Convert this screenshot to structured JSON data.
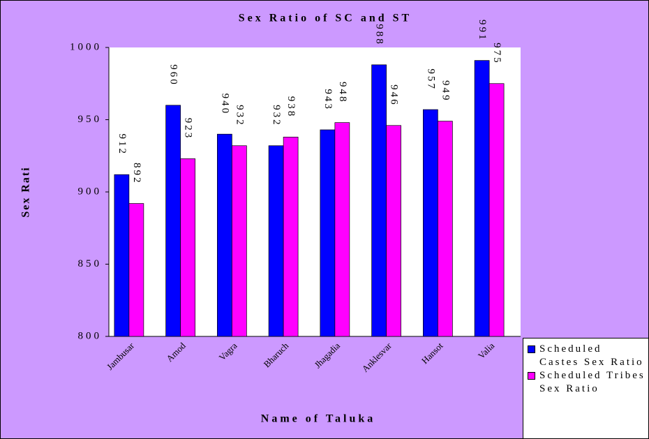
{
  "chart_data": {
    "type": "bar",
    "title": "Sex Ratio of SC and ST",
    "x_label": "Name of Taluka",
    "y_label": "Sex Rati",
    "categories": [
      "Jambusar",
      "Amod",
      "Vagra",
      "Bharuch",
      "Jhagadia",
      "Anklesvar",
      "Hansot",
      "Valia"
    ],
    "series": [
      {
        "name": "Scheduled Castes Sex Ratio",
        "color": "#0000ff",
        "values": [
          912,
          960,
          940,
          932,
          943,
          988,
          957,
          991
        ]
      },
      {
        "name": "Scheduled Tribes Sex Ratio",
        "color": "#ff00ff",
        "values": [
          892,
          923,
          932,
          938,
          948,
          946,
          949,
          975
        ]
      }
    ],
    "ylim": [
      800,
      1000
    ],
    "yticks": [
      800,
      850,
      900,
      950,
      1000
    ],
    "grid": false,
    "legend": "bottom-right"
  }
}
